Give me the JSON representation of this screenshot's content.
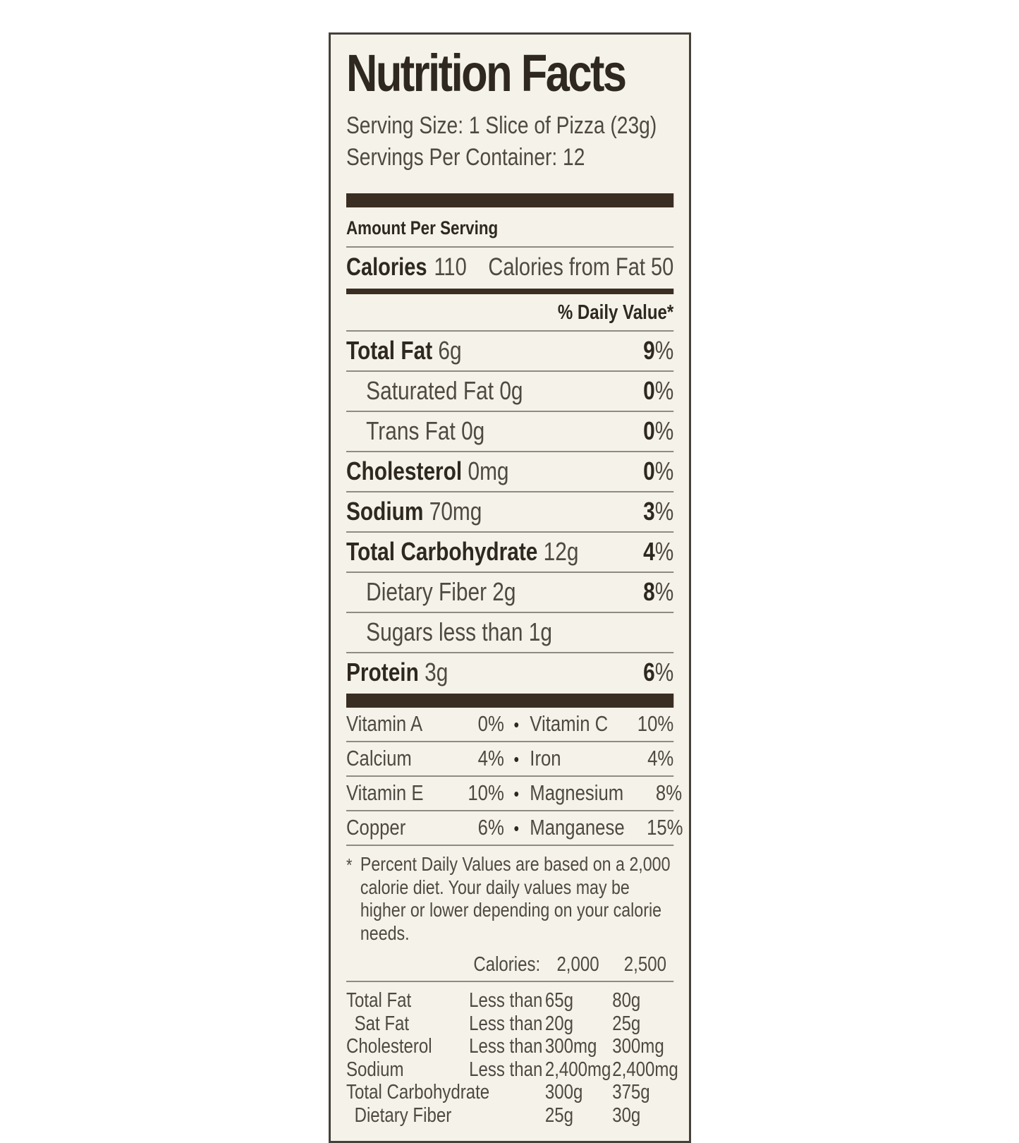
{
  "label": {
    "title": "Nutrition Facts",
    "serving_size": "Serving Size: 1 Slice of Pizza (23g)",
    "servings_per_container": "Servings Per Container: 12",
    "amount_per_serving": "Amount Per Serving",
    "calories_label": "Calories",
    "calories_value": "110",
    "calories_from_fat": "Calories from Fat 50",
    "daily_value_header": "% Daily Value*",
    "percent_sign": "%",
    "bullet": "•",
    "nutrients": [
      {
        "name": "Total Fat",
        "amount": "6g",
        "dv": "9",
        "bold": true,
        "indent": 0
      },
      {
        "name": "Saturated Fat",
        "amount": "0g",
        "dv": "0",
        "bold": false,
        "indent": 1
      },
      {
        "name": "Trans Fat",
        "amount": "0g",
        "dv": "0",
        "bold": false,
        "indent": 1
      },
      {
        "name": "Cholesterol",
        "amount": "0mg",
        "dv": "0",
        "bold": true,
        "indent": 0
      },
      {
        "name": "Sodium",
        "amount": "70mg",
        "dv": "3",
        "bold": true,
        "indent": 0
      },
      {
        "name": "Total Carbohydrate",
        "amount": "12g",
        "dv": "4",
        "bold": true,
        "indent": 0
      },
      {
        "name": "Dietary Fiber",
        "amount": "2g",
        "dv": "8",
        "bold": false,
        "indent": 1
      },
      {
        "name": "Sugars less than 1g",
        "amount": "",
        "dv": "",
        "bold": false,
        "indent": 1
      },
      {
        "name": "Protein",
        "amount": "3g",
        "dv": "6",
        "bold": true,
        "indent": 0
      }
    ],
    "vitamins": [
      {
        "left_name": "Vitamin A",
        "left_value": "0%",
        "right_name": "Vitamin C",
        "right_value": "10%"
      },
      {
        "left_name": "Calcium",
        "left_value": "4%",
        "right_name": "Iron",
        "right_value": "4%"
      },
      {
        "left_name": "Vitamin E",
        "left_value": "10%",
        "right_name": "Magnesium",
        "right_value": "8%"
      },
      {
        "left_name": "Copper",
        "left_value": "6%",
        "right_name": "Manganese",
        "right_value": "15%"
      }
    ],
    "footnote_marker": "*",
    "footnote": "Percent Daily Values are based on a 2,000 calorie diet. Your daily values may be higher or lower depending on your calorie needs.",
    "ref_table": {
      "header": {
        "label": "Calories:",
        "col1": "2,000",
        "col2": "2,500"
      },
      "rows": [
        {
          "name": "Total Fat",
          "qualifier": "Less than",
          "v2000": "65g",
          "v2500": "80g",
          "indent": 0
        },
        {
          "name": "Sat Fat",
          "qualifier": "Less than",
          "v2000": "20g",
          "v2500": "25g",
          "indent": 1
        },
        {
          "name": "Cholesterol",
          "qualifier": "Less than",
          "v2000": "300mg",
          "v2500": "300mg",
          "indent": 0
        },
        {
          "name": "Sodium",
          "qualifier": "Less than",
          "v2000": "2,400mg",
          "v2500": "2,400mg",
          "indent": 0
        },
        {
          "name": "Total Carbohydrate",
          "qualifier": "",
          "v2000": "300g",
          "v2500": "375g",
          "indent": 0
        },
        {
          "name": "Dietary Fiber",
          "qualifier": "",
          "v2000": "25g",
          "v2500": "30g",
          "indent": 1
        }
      ]
    },
    "colors": {
      "background": "#f5f2e9",
      "border": "#45413a",
      "bar": "#3a2d21",
      "rule": "#8f8b83",
      "text_bold": "#2e2820",
      "text_regular": "#4e4942"
    }
  }
}
